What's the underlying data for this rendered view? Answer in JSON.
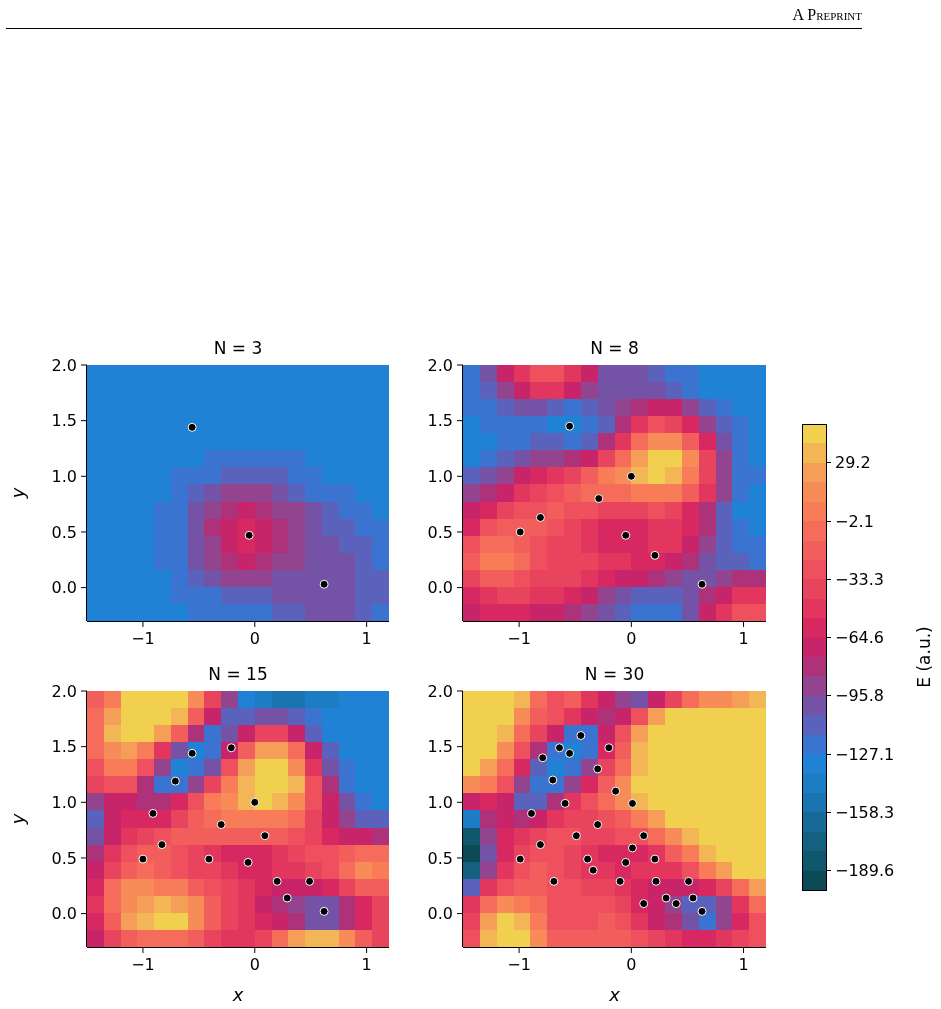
{
  "chart_data": [
    {
      "type": "heatmap",
      "title": "N = 3",
      "ylabel": "y",
      "xlim": [
        -1.5,
        1.2
      ],
      "ylim": [
        -0.3,
        2.0
      ],
      "xticks": [
        {
          "value": -1,
          "label": "−1"
        },
        {
          "value": 0,
          "label": "0"
        },
        {
          "value": 1,
          "label": "1"
        }
      ],
      "yticks": [
        {
          "value": 0,
          "label": "0.0"
        },
        {
          "value": 0.5,
          "label": "0.5"
        },
        {
          "value": 1,
          "label": "1.0"
        },
        {
          "value": 1.5,
          "label": "1.5"
        },
        {
          "value": 2,
          "label": "2.0"
        }
      ],
      "clim": [
        -200,
        50
      ],
      "cticks": [
        {
          "value": -189.6,
          "label": "−189.6"
        },
        {
          "value": -64.6,
          "label": "−64.6"
        }
      ],
      "colors": [
        "#0c4a56",
        "#10566c",
        "#136080",
        "#176a98",
        "#1a74b0",
        "#1c7cc4",
        "#1f82d4",
        "#3a74d0",
        "#5a62bc",
        "#7452a6",
        "#92448e",
        "#ae327a",
        "#c8246a",
        "#d82862",
        "#e2365e",
        "#e8445e",
        "#ee505e",
        "#f25e5c",
        "#f66c5a",
        "#f87c58",
        "#f78c58",
        "#f59e58",
        "#f2b656",
        "#f0d04e"
      ],
      "cells": [
        [
          -132,
          -132,
          -132,
          -132,
          -132,
          -132,
          -132,
          -132,
          -132,
          -132,
          -132,
          -132,
          -132,
          -132,
          -132,
          -132,
          -132,
          -132
        ],
        [
          -132,
          -132,
          -132,
          -132,
          -132,
          -132,
          -132,
          -132,
          -132,
          -132,
          -132,
          -132,
          -132,
          -132,
          -132,
          -132,
          -132,
          -132
        ],
        [
          -132,
          -132,
          -132,
          -132,
          -132,
          -132,
          -132,
          -132,
          -132,
          -132,
          -132,
          -132,
          -132,
          -132,
          -132,
          -132,
          -132,
          -132
        ],
        [
          -132,
          -132,
          -132,
          -132,
          -132,
          -132,
          -132,
          -132,
          -132,
          -132,
          -132,
          -132,
          -132,
          -132,
          -132,
          -132,
          -132,
          -132
        ],
        [
          -132,
          -132,
          -132,
          -132,
          -132,
          -132,
          -132,
          -132,
          -130,
          -130,
          -130,
          -130,
          -132,
          -132,
          -132,
          -132,
          -132,
          -132
        ],
        [
          -132,
          -132,
          -132,
          -132,
          -132,
          -132,
          -129,
          -126,
          -124,
          -122,
          -123,
          -125,
          -127,
          -128,
          -131,
          -132,
          -132,
          -132
        ],
        [
          -132,
          -132,
          -132,
          -132,
          -132,
          -127,
          -122,
          -117,
          -112,
          -109,
          -111,
          -115,
          -120,
          -124,
          -128,
          -131,
          -132,
          -132
        ],
        [
          -132,
          -132,
          -132,
          -132,
          -130,
          -124,
          -116,
          -104,
          -93,
          -89,
          -92,
          -102,
          -112,
          -118,
          -123,
          -127,
          -130,
          -132
        ],
        [
          -132,
          -132,
          -132,
          -131,
          -127,
          -119,
          -105,
          -90,
          -79,
          -72,
          -76,
          -86,
          -95,
          -106,
          -116,
          -121,
          -127,
          -131
        ],
        [
          -132,
          -132,
          -132,
          -131,
          -126,
          -117,
          -99,
          -85,
          -68,
          -61,
          -65,
          -80,
          -93,
          -100,
          -109,
          -116,
          -121,
          -126
        ],
        [
          -132,
          -132,
          -132,
          -131,
          -126,
          -117,
          -100,
          -86,
          -68,
          -61,
          -66,
          -82,
          -92,
          -99,
          -102,
          -108,
          -115,
          -120
        ],
        [
          -132,
          -132,
          -132,
          -131,
          -127,
          -120,
          -106,
          -91,
          -80,
          -74,
          -78,
          -87,
          -94,
          -98,
          -100,
          -103,
          -110,
          -117
        ],
        [
          -132,
          -132,
          -132,
          -132,
          -130,
          -124,
          -116,
          -104,
          -95,
          -90,
          -93,
          -97,
          -99,
          -100,
          -100,
          -103,
          -108,
          -116
        ],
        [
          -132,
          -132,
          -132,
          -132,
          -131,
          -127,
          -122,
          -117,
          -112,
          -109,
          -108,
          -106,
          -104,
          -102,
          -101,
          -104,
          -108,
          -116
        ],
        [
          -132,
          -132,
          -132,
          -132,
          -132,
          -130,
          -126,
          -123,
          -121,
          -119,
          -117,
          -114,
          -110,
          -106,
          -104,
          -106,
          -110,
          -117
        ]
      ],
      "marker": "circle",
      "series": [
        {
          "type": "scatter",
          "color": "#000000",
          "x": [
            -0.56,
            -0.05,
            0.62
          ],
          "values": [
            1.44,
            0.47,
            0.03
          ]
        }
      ],
      "annotations": [
        "A Preprint"
      ]
    },
    {
      "type": "heatmap",
      "title": "N = 8",
      "xlim": [
        -1.5,
        1.2
      ],
      "ylim": [
        -0.3,
        2.0
      ],
      "xticks": [
        {
          "value": -1,
          "label": "−1"
        },
        {
          "value": 0,
          "label": "0"
        },
        {
          "value": 1,
          "label": "1"
        }
      ],
      "yticks": [
        {
          "value": 0,
          "label": "0.0"
        },
        {
          "value": 0.5,
          "label": "0.5"
        },
        {
          "value": 1,
          "label": "1.0"
        },
        {
          "value": 1.5,
          "label": "1.5"
        },
        {
          "value": 2,
          "label": "2.0"
        }
      ],
      "clim": [
        -200,
        50
      ],
      "cticks": [
        {
          "value": -158.3,
          "label": "−158.3"
        },
        {
          "value": -33.3,
          "label": "−33.3"
        }
      ],
      "colors": [
        "#0c4a56",
        "#10566c",
        "#136080",
        "#176a98",
        "#1a74b0",
        "#1c7cc4",
        "#1f82d4",
        "#3a74d0",
        "#5a62bc",
        "#7452a6",
        "#92448e",
        "#ae327a",
        "#c8246a",
        "#d82862",
        "#e2365e",
        "#e8445e",
        "#ee505e",
        "#f25e5c",
        "#f66c5a",
        "#f87c58",
        "#f78c58",
        "#f59e58",
        "#f2b656",
        "#f0d04e"
      ],
      "cells": [
        [
          -118,
          -100,
          -75,
          -45,
          -30,
          -30,
          -45,
          -75,
          -100,
          -105,
          -102,
          -108,
          -118,
          -126,
          -131,
          -133,
          -134,
          -134
        ],
        [
          -122,
          -110,
          -88,
          -65,
          -52,
          -52,
          -65,
          -88,
          -105,
          -100,
          -100,
          -105,
          -108,
          -120,
          -128,
          -132,
          -134,
          -134
        ],
        [
          -125,
          -120,
          -110,
          -102,
          -104,
          -112,
          -118,
          -115,
          -105,
          -88,
          -78,
          -70,
          -75,
          -90,
          -108,
          -120,
          -128,
          -133
        ],
        [
          -128,
          -126,
          -122,
          -118,
          -122,
          -130,
          -134,
          -126,
          -110,
          -85,
          -50,
          -32,
          -35,
          -55,
          -95,
          -115,
          -126,
          -132
        ],
        [
          -130,
          -128,
          -124,
          -118,
          -112,
          -115,
          -118,
          -108,
          -85,
          -45,
          -10,
          12,
          10,
          -15,
          -60,
          -100,
          -122,
          -130
        ],
        [
          -128,
          -124,
          -115,
          -105,
          -95,
          -90,
          -85,
          -70,
          -40,
          -5,
          25,
          45,
          42,
          15,
          -40,
          -90,
          -118,
          -128
        ],
        [
          -112,
          -100,
          -88,
          -75,
          -62,
          -52,
          -40,
          -20,
          5,
          18,
          38,
          40,
          30,
          5,
          -40,
          -90,
          -118,
          -126
        ],
        [
          -95,
          -80,
          -65,
          -52,
          -42,
          -32,
          -22,
          -10,
          -5,
          -8,
          0,
          5,
          0,
          -15,
          -50,
          -90,
          -120,
          -128
        ],
        [
          -75,
          -55,
          -40,
          -30,
          -25,
          -22,
          -25,
          -30,
          -35,
          -38,
          -35,
          -30,
          -35,
          -55,
          -85,
          -115,
          -128,
          -132
        ],
        [
          -55,
          -30,
          -18,
          -15,
          -18,
          -25,
          -38,
          -50,
          -58,
          -62,
          -58,
          -48,
          -45,
          -60,
          -85,
          -110,
          -125,
          -130
        ],
        [
          -25,
          -8,
          -5,
          -15,
          -28,
          -35,
          -42,
          -50,
          -56,
          -60,
          -55,
          -48,
          -50,
          -65,
          -88,
          -110,
          -122,
          -125
        ],
        [
          -15,
          2,
          3,
          -12,
          -30,
          -38,
          -40,
          -42,
          -45,
          -48,
          -55,
          -62,
          -70,
          -85,
          -100,
          -110,
          -115,
          -118
        ],
        [
          -35,
          -18,
          -15,
          -25,
          -35,
          -40,
          -42,
          -48,
          -55,
          -65,
          -75,
          -85,
          -95,
          -105,
          -105,
          -95,
          -85,
          -85
        ],
        [
          -55,
          -45,
          -42,
          -42,
          -45,
          -52,
          -62,
          -75,
          -88,
          -100,
          -108,
          -112,
          -112,
          -105,
          -85,
          -65,
          -50,
          -48
        ],
        [
          -70,
          -62,
          -58,
          -60,
          -65,
          -75,
          -85,
          -95,
          -105,
          -112,
          -118,
          -120,
          -118,
          -105,
          -75,
          -45,
          -28,
          -32
        ]
      ],
      "marker": "circle",
      "series": [
        {
          "type": "scatter",
          "color": "#000000",
          "x": [
            -0.55,
            0.0,
            -0.29,
            -0.81,
            -0.99,
            -0.05,
            0.21,
            0.63
          ],
          "values": [
            1.45,
            1.0,
            0.8,
            0.63,
            0.5,
            0.47,
            0.29,
            0.03
          ]
        }
      ]
    },
    {
      "type": "heatmap",
      "title": "N = 15",
      "xlabel": "x",
      "ylabel": "y",
      "xlim": [
        -1.5,
        1.2
      ],
      "ylim": [
        -0.3,
        2.0
      ],
      "xticks": [
        {
          "value": -1,
          "label": "−1"
        },
        {
          "value": 0,
          "label": "0"
        },
        {
          "value": 1,
          "label": "1"
        }
      ],
      "yticks": [
        {
          "value": 0,
          "label": "0.0"
        },
        {
          "value": 0.5,
          "label": "0.5"
        },
        {
          "value": 1,
          "label": "1.0"
        },
        {
          "value": 1.5,
          "label": "1.5"
        },
        {
          "value": 2,
          "label": "2.0"
        }
      ],
      "clim": [
        -200,
        50
      ],
      "cticks": [
        {
          "value": -127.1,
          "label": "−127.1"
        },
        {
          "value": -2.1,
          "label": "−2.1"
        }
      ],
      "colors": [
        "#0c4a56",
        "#10566c",
        "#136080",
        "#176a98",
        "#1a74b0",
        "#1c7cc4",
        "#1f82d4",
        "#3a74d0",
        "#5a62bc",
        "#7452a6",
        "#92448e",
        "#ae327a",
        "#c8246a",
        "#d82862",
        "#e2365e",
        "#e8445e",
        "#ee505e",
        "#f25e5c",
        "#f66c5a",
        "#f87c58",
        "#f78c58",
        "#f59e58",
        "#f2b656",
        "#f0d04e"
      ],
      "cells": [
        [
          -15,
          5,
          40,
          48,
          48,
          45,
          10,
          -40,
          -90,
          -128,
          -145,
          -148,
          -148,
          -145,
          -140,
          -135,
          -132,
          -132
        ],
        [
          -10,
          20,
          46,
          48,
          45,
          30,
          -15,
          -70,
          -115,
          -115,
          -105,
          -105,
          -115,
          -125,
          -130,
          -132,
          -132,
          -132
        ],
        [
          -5,
          30,
          45,
          40,
          20,
          -20,
          -80,
          -118,
          -105,
          -75,
          -40,
          -38,
          -70,
          -110,
          -128,
          -132,
          -132,
          -132
        ],
        [
          -10,
          15,
          25,
          5,
          -45,
          -105,
          -130,
          -118,
          -70,
          -20,
          25,
          28,
          -10,
          -70,
          -115,
          -130,
          -132,
          -132
        ],
        [
          -25,
          0,
          5,
          -30,
          -95,
          -128,
          -122,
          -100,
          -25,
          20,
          48,
          48,
          15,
          -45,
          -100,
          -125,
          -132,
          -132
        ],
        [
          -40,
          -25,
          -30,
          -80,
          -118,
          -122,
          -90,
          -40,
          0,
          30,
          48,
          48,
          30,
          -25,
          -85,
          -118,
          -130,
          -132
        ],
        [
          -95,
          -75,
          -72,
          -80,
          -85,
          -60,
          -30,
          0,
          12,
          30,
          42,
          38,
          12,
          -30,
          -75,
          -105,
          -122,
          -128
        ],
        [
          -110,
          -75,
          -62,
          -60,
          -55,
          -40,
          -20,
          -5,
          -2,
          5,
          8,
          5,
          -10,
          -40,
          -70,
          -95,
          -110,
          -115
        ],
        [
          -100,
          -65,
          -50,
          -40,
          -30,
          -22,
          -18,
          -15,
          -18,
          -22,
          -20,
          -18,
          -25,
          -40,
          -55,
          -65,
          -70,
          -80
        ],
        [
          -85,
          -50,
          -30,
          -18,
          -15,
          -25,
          -35,
          -45,
          -55,
          -60,
          -55,
          -45,
          -35,
          -30,
          -25,
          -15,
          -5,
          -10
        ],
        [
          -70,
          -40,
          -20,
          -12,
          -15,
          -25,
          -35,
          -42,
          -48,
          -55,
          -55,
          -50,
          -45,
          -40,
          -30,
          -10,
          10,
          5
        ],
        [
          -55,
          -10,
          10,
          12,
          8,
          0,
          -15,
          -30,
          -42,
          -52,
          -60,
          -68,
          -70,
          -65,
          -55,
          -35,
          -15,
          -15
        ],
        [
          -50,
          -5,
          18,
          25,
          32,
          28,
          10,
          -15,
          -35,
          -50,
          -65,
          -80,
          -90,
          -100,
          -98,
          -85,
          -60,
          -40
        ],
        [
          -55,
          -15,
          20,
          35,
          42,
          40,
          15,
          -15,
          -38,
          -52,
          -62,
          -72,
          -85,
          -98,
          -105,
          -85,
          -60,
          -40
        ],
        [
          -70,
          -40,
          -15,
          -5,
          -5,
          -10,
          -20,
          -35,
          -45,
          -50,
          -40,
          -10,
          20,
          35,
          30,
          10,
          -20,
          -35
        ]
      ],
      "marker": "circle",
      "series": [
        {
          "type": "scatter",
          "color": "#000000",
          "x": [
            -0.56,
            -0.21,
            -0.71,
            0.0,
            -0.91,
            -0.3,
            0.09,
            -1.0,
            -0.83,
            -0.41,
            -0.06,
            0.2,
            0.49,
            0.29,
            0.62
          ],
          "values": [
            1.44,
            1.49,
            1.19,
            1.0,
            0.9,
            0.8,
            0.7,
            0.49,
            0.62,
            0.49,
            0.46,
            0.29,
            0.29,
            0.14,
            0.02
          ]
        }
      ]
    },
    {
      "type": "heatmap",
      "title": "N = 30",
      "xlabel": "x",
      "xlim": [
        -1.5,
        1.2
      ],
      "ylim": [
        -0.3,
        2.0
      ],
      "xticks": [
        {
          "value": -1,
          "label": "−1"
        },
        {
          "value": 0,
          "label": "0"
        },
        {
          "value": 1,
          "label": "1"
        }
      ],
      "yticks": [
        {
          "value": 0,
          "label": "0.0"
        },
        {
          "value": 0.5,
          "label": "0.5"
        },
        {
          "value": 1,
          "label": "1.0"
        },
        {
          "value": 1.5,
          "label": "1.5"
        },
        {
          "value": 2,
          "label": "2.0"
        }
      ],
      "clim": [
        -200,
        50
      ],
      "cticks": [
        {
          "value": -95.8,
          "label": "−95.8"
        },
        29.2
      ],
      "clabel": "E (a.u.)",
      "colors": [
        "#0c4a56",
        "#10566c",
        "#136080",
        "#176a98",
        "#1a74b0",
        "#1c7cc4",
        "#1f82d4",
        "#3a74d0",
        "#5a62bc",
        "#7452a6",
        "#92448e",
        "#ae327a",
        "#c8246a",
        "#d82862",
        "#e2365e",
        "#e8445e",
        "#ee505e",
        "#f25e5c",
        "#f66c5a",
        "#f87c58",
        "#f78c58",
        "#f59e58",
        "#f2b656",
        "#f0d04e"
      ],
      "cells": [
        [
          45,
          45,
          45,
          35,
          -5,
          -25,
          -15,
          -45,
          -70,
          -95,
          -105,
          -75,
          -35,
          -5,
          10,
          18,
          25,
          30
        ],
        [
          45,
          45,
          45,
          10,
          -20,
          -30,
          -45,
          -70,
          -80,
          -70,
          -25,
          20,
          45,
          48,
          48,
          48,
          48,
          48
        ],
        [
          45,
          45,
          35,
          -5,
          -35,
          -75,
          -118,
          -120,
          -70,
          -30,
          25,
          48,
          48,
          48,
          48,
          48,
          48,
          48
        ],
        [
          45,
          40,
          15,
          -30,
          -80,
          -125,
          -132,
          -120,
          -60,
          -20,
          30,
          48,
          48,
          48,
          48,
          48,
          48,
          48
        ],
        [
          40,
          25,
          -5,
          -55,
          -115,
          -130,
          -125,
          -90,
          -40,
          -5,
          35,
          48,
          48,
          48,
          48,
          48,
          48,
          48
        ],
        [
          15,
          5,
          -25,
          -90,
          -125,
          -120,
          -95,
          -55,
          -20,
          12,
          40,
          48,
          48,
          48,
          48,
          48,
          48,
          48
        ],
        [
          -75,
          -60,
          -75,
          -110,
          -110,
          -80,
          -50,
          -25,
          -5,
          15,
          35,
          48,
          48,
          48,
          48,
          48,
          48,
          48
        ],
        [
          -140,
          -80,
          -70,
          -85,
          -70,
          -50,
          -40,
          -35,
          -25,
          -15,
          0,
          25,
          45,
          48,
          48,
          48,
          48,
          48
        ],
        [
          -185,
          -95,
          -60,
          -45,
          -35,
          -30,
          -30,
          -35,
          -35,
          -30,
          -25,
          -10,
          15,
          35,
          48,
          48,
          48,
          48
        ],
        [
          -190,
          -100,
          -55,
          -35,
          -28,
          -30,
          -40,
          -50,
          -58,
          -62,
          -58,
          -45,
          -20,
          5,
          30,
          45,
          48,
          48
        ],
        [
          -170,
          -90,
          -50,
          -30,
          -20,
          -25,
          -35,
          -45,
          -52,
          -55,
          -52,
          -50,
          -45,
          -25,
          0,
          25,
          45,
          48
        ],
        [
          -110,
          -50,
          -25,
          -15,
          -15,
          -25,
          -30,
          -35,
          -40,
          -45,
          -55,
          -65,
          -75,
          -75,
          -60,
          -35,
          -5,
          25
        ],
        [
          -50,
          -10,
          10,
          5,
          -10,
          -25,
          -30,
          -30,
          -32,
          -40,
          -55,
          -75,
          -95,
          -110,
          -115,
          -90,
          -45,
          -10
        ],
        [
          -35,
          20,
          40,
          35,
          0,
          -25,
          -30,
          -25,
          -22,
          -30,
          -45,
          -65,
          -85,
          -105,
          -118,
          -95,
          -55,
          -25
        ],
        [
          -30,
          30,
          48,
          45,
          10,
          -20,
          -20,
          -15,
          -15,
          -20,
          -30,
          -40,
          -50,
          -60,
          -60,
          -50,
          -35,
          -25
        ]
      ],
      "marker": "circle",
      "series": [
        {
          "type": "scatter",
          "color": "#000000",
          "x": [
            -0.45,
            -0.64,
            -0.55,
            -0.79,
            -0.2,
            -0.3,
            -0.7,
            -0.14,
            0.01,
            -0.59,
            -0.89,
            -0.3,
            -0.49,
            0.11,
            -0.81,
            0.01,
            -0.99,
            -0.39,
            -0.05,
            0.21,
            -0.34,
            -0.69,
            -0.1,
            0.22,
            0.51,
            0.31,
            0.4,
            0.55,
            0.11,
            0.63
          ],
          "values": [
            1.6,
            1.49,
            1.44,
            1.4,
            1.49,
            1.3,
            1.2,
            1.1,
            0.99,
            0.99,
            0.9,
            0.8,
            0.7,
            0.7,
            0.62,
            0.59,
            0.49,
            0.49,
            0.46,
            0.49,
            0.39,
            0.29,
            0.29,
            0.29,
            0.29,
            0.14,
            0.09,
            0.14,
            0.09,
            0.02
          ]
        }
      ]
    }
  ]
}
